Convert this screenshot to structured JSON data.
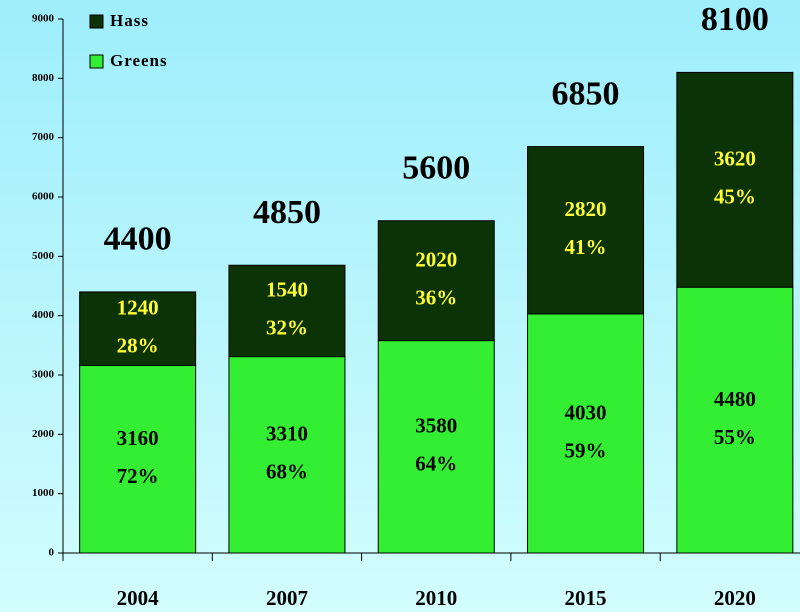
{
  "chart_data": {
    "type": "stacked_bar",
    "categories": [
      "2004",
      "2007",
      "2010",
      "2015",
      "2020"
    ],
    "series": [
      {
        "name": "Greens",
        "color": "#33ee33",
        "label_color": "#000000",
        "values": [
          3160,
          3310,
          3580,
          4030,
          4480
        ],
        "percent_labels": [
          "72%",
          "68%",
          "64%",
          "59%",
          "55%"
        ]
      },
      {
        "name": "Hass",
        "color": "#0b3306",
        "label_color": "#ffff33",
        "values": [
          1240,
          1540,
          2020,
          2820,
          3620
        ],
        "percent_labels": [
          "28%",
          "32%",
          "36%",
          "41%",
          "45%"
        ]
      }
    ],
    "totals": [
      4400,
      4850,
      5600,
      6850,
      8100
    ],
    "ylim": [
      0,
      9000
    ],
    "yticks": [
      0,
      1000,
      2000,
      3000,
      4000,
      5000,
      6000,
      7000,
      8000,
      9000
    ],
    "legend": "top-left"
  }
}
